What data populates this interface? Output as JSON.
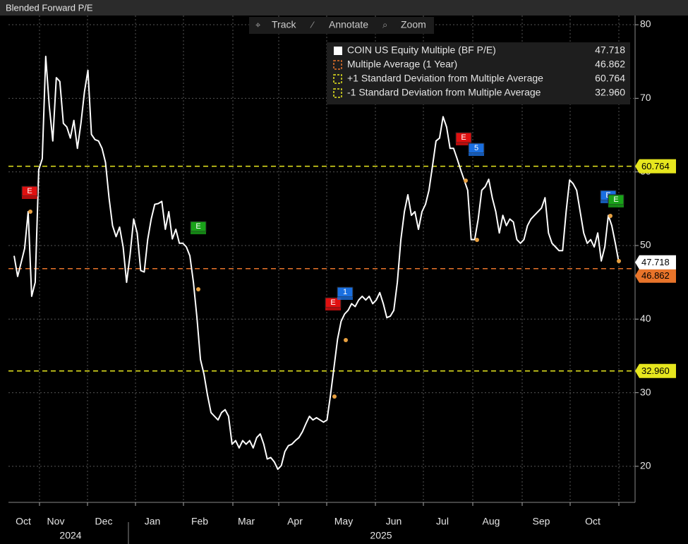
{
  "chart_data": {
    "type": "line",
    "title": "Blended Forward P/E",
    "toolbar": [
      "Track",
      "Annotate",
      "Zoom"
    ],
    "x_labels": [
      "Oct",
      "Nov",
      "Dec",
      "Jan",
      "Feb",
      "Mar",
      "Apr",
      "May",
      "Jun",
      "Jul",
      "Aug",
      "Sep",
      "Oct"
    ],
    "years": [
      "2024",
      "2025"
    ],
    "series": [
      {
        "name": "COIN US Equity Multiple (BF P/E)",
        "color": "#ffffff",
        "values": [
          48.6,
          45.8,
          47.7,
          49.6,
          54.6,
          43.1,
          45,
          60.3,
          61.8,
          75.7,
          69,
          64.2,
          72.8,
          72.3,
          66.6,
          66.1,
          64.6,
          67,
          63.2,
          66.6,
          70.9,
          73.8,
          65.1,
          64.4,
          64.2,
          63.2,
          61.3,
          56.5,
          52.7,
          51.2,
          52.5,
          49.8,
          45,
          48.8,
          53.6,
          51.7,
          46.6,
          46.4,
          50.8,
          53.6,
          55.6,
          55.7,
          56,
          52.2,
          54.6,
          50.9,
          52.2,
          50.3,
          50.3,
          49.8,
          48.6,
          45,
          40.2,
          34.5,
          32.5,
          29.7,
          27.3,
          26.8,
          26.3,
          27.3,
          27.7,
          26.8,
          23,
          23.5,
          22.5,
          23.5,
          23,
          23.5,
          22.5,
          23.9,
          24.4,
          23,
          21,
          21.2,
          20.6,
          19.6,
          20.1,
          22,
          22.8,
          23,
          23.5,
          23.9,
          24.7,
          25.8,
          26.8,
          26.3,
          26.6,
          26.3,
          26,
          26.3,
          29.7,
          33.5,
          37.3,
          39.7,
          40.7,
          41.2,
          42.1,
          41.7,
          42.6,
          43.1,
          42.6,
          43.1,
          42.1,
          42.6,
          43.6,
          42.1,
          40.2,
          40.4,
          41.2,
          45,
          50.8,
          54.6,
          56.9,
          54.1,
          54.6,
          52.2,
          54.6,
          55.6,
          57.5,
          60.8,
          64.2,
          64.6,
          67.5,
          66.1,
          63.2,
          63.2,
          61.8,
          60.3,
          58.9,
          57.5,
          50.8,
          50.8,
          53.6,
          57.5,
          58,
          59,
          56.5,
          54.6,
          51.7,
          54.1,
          52.7,
          53.6,
          53.2,
          50.8,
          50.3,
          50.8,
          52.7,
          53.6,
          54.1,
          54.6,
          55.1,
          56.5,
          51.7,
          50.3,
          49.8,
          49.3,
          49.3,
          54.6,
          58.9,
          58.4,
          57.5,
          54.6,
          51.7,
          50.3,
          50.8,
          49.8,
          51.7,
          47.9,
          49.8,
          54.1,
          52.7,
          50.3,
          47.718
        ]
      }
    ],
    "reference_lines": [
      {
        "name": "Multiple Average (1 Year)",
        "color": "#e8742a",
        "value": 46.862
      },
      {
        "name": "+1 Standard Deviation from Multiple Average",
        "color": "#e6e61e",
        "value": 60.764
      },
      {
        "name": "-1 Standard Deviation from Multiple Average",
        "color": "#e6e61e",
        "value": 32.96,
        "label": "32.960"
      }
    ],
    "events": [
      {
        "label": "E",
        "color": "#e01010"
      },
      {
        "label": "E",
        "color": "#19a319"
      },
      {
        "label": "E",
        "color": "#e01010"
      },
      {
        "label": "1",
        "color": "#1a6fe0"
      },
      {
        "label": "E",
        "color": "#e01010"
      },
      {
        "label": "5",
        "color": "#1a6fe0"
      },
      {
        "label": "E",
        "color": "#1a6fe0"
      },
      {
        "label": "E",
        "color": "#19a319"
      }
    ],
    "ylim": [
      15.1,
      81.25
    ],
    "yticks": [
      20,
      30,
      40,
      50,
      60,
      70,
      80
    ],
    "grid": true
  }
}
